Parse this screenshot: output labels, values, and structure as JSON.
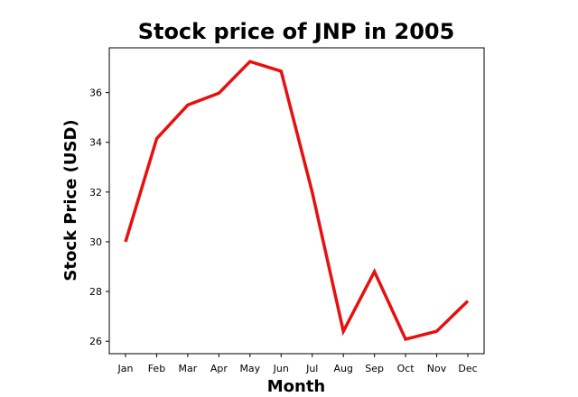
{
  "chart_data": {
    "type": "line",
    "title": "Stock price of JNP in 2005",
    "xlabel": "Month",
    "ylabel": "Stock Price (USD)",
    "categories": [
      "Jan",
      "Feb",
      "Mar",
      "Apr",
      "May",
      "Jun",
      "Jul",
      "Aug",
      "Sep",
      "Oct",
      "Nov",
      "Dec"
    ],
    "series": [
      {
        "values": [
          30.0,
          34.15,
          35.5,
          35.98,
          37.25,
          36.86,
          32.0,
          26.4,
          28.8,
          26.08,
          26.4,
          27.62
        ],
        "color": "#e8100e"
      }
    ],
    "yticks": [
      26,
      28,
      30,
      32,
      34,
      36
    ],
    "ylim": [
      25.5,
      37.8
    ],
    "grid": false,
    "legend": "none"
  }
}
